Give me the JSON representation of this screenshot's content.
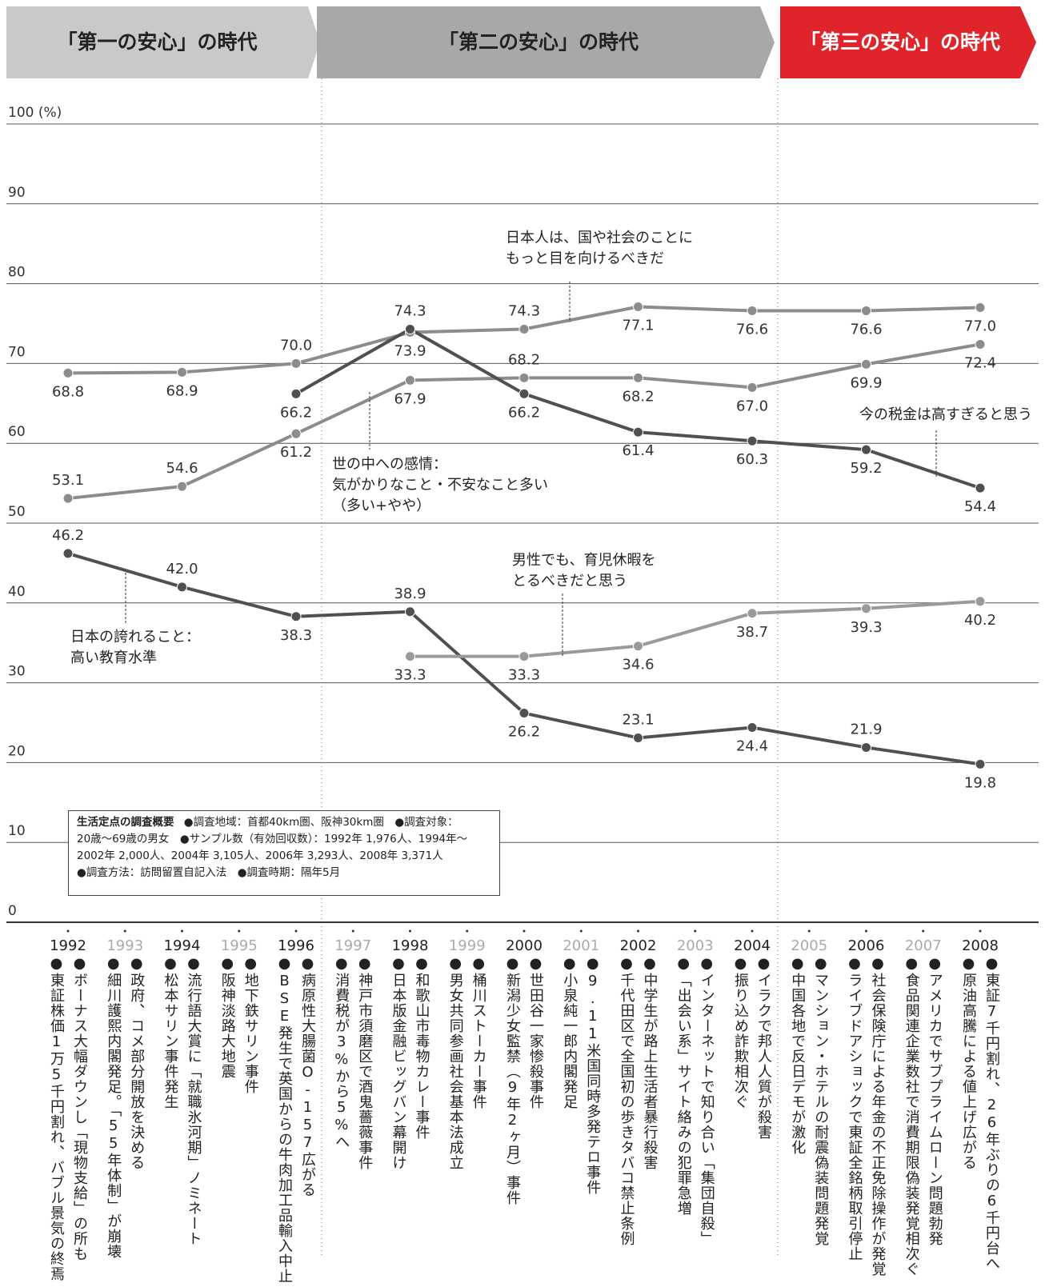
{
  "chart_data": {
    "type": "line",
    "eras": [
      {
        "label": "「第一の安心」の時代",
        "color": "#c9c9c9",
        "text_color": "#222222"
      },
      {
        "label": "「第二の安心」の時代",
        "color": "#a8a8a8",
        "text_color": "#222222"
      },
      {
        "label": "「第三の安心」の時代",
        "color": "#e0242c",
        "text_color": "#ffffff"
      }
    ],
    "x": [
      1992,
      1993,
      1994,
      1995,
      1996,
      1997,
      1998,
      1999,
      2000,
      2001,
      2002,
      2003,
      2004,
      2005,
      2006,
      2007,
      2008
    ],
    "ylim": [
      0,
      100
    ],
    "yticks": [
      0,
      10,
      20,
      30,
      40,
      50,
      60,
      70,
      80,
      90,
      {
        "value": 100,
        "label": "100 (%)"
      }
    ],
    "grid": true,
    "series": [
      {
        "name": "日本人は、国や社会のことに\nもっと目を向けるべきだ",
        "color": "#8c8c8c",
        "values": [
          68.8,
          null,
          68.9,
          null,
          70.0,
          null,
          73.9,
          null,
          74.3,
          null,
          77.1,
          null,
          76.6,
          null,
          76.6,
          null,
          77.0
        ],
        "value_labels": [
          "68.8",
          null,
          "68.9",
          null,
          "70.0",
          null,
          "73.9",
          null,
          "74.3",
          null,
          "77.1",
          null,
          "76.6",
          null,
          "76.6",
          null,
          "77.0"
        ]
      },
      {
        "name": "世の中への感情：\n気がかりなこと・不安なこと多い\n（多い+やや）",
        "color": "#8c8c8c",
        "values": [
          53.1,
          null,
          54.6,
          null,
          61.2,
          null,
          67.9,
          null,
          68.2,
          null,
          68.2,
          null,
          67.0,
          null,
          69.9,
          null,
          72.4
        ],
        "value_labels": [
          "53.1",
          null,
          "54.6",
          null,
          "61.2",
          null,
          "67.9",
          null,
          "68.2",
          null,
          "68.2",
          null,
          "67.0",
          null,
          "69.9",
          null,
          "72.4"
        ]
      },
      {
        "name": "今の税金は高すぎると思う",
        "color": "#505050",
        "values": [
          null,
          null,
          null,
          null,
          66.2,
          null,
          74.3,
          null,
          66.2,
          null,
          61.4,
          null,
          60.3,
          null,
          59.2,
          null,
          54.4
        ],
        "value_labels": [
          null,
          null,
          null,
          null,
          "66.2",
          null,
          "74.3",
          null,
          "66.2",
          null,
          "61.4",
          null,
          "60.3",
          null,
          "59.2",
          null,
          "54.4"
        ]
      },
      {
        "name": "日本の誇れること：\n高い教育水準",
        "color": "#505050",
        "values": [
          46.2,
          null,
          42.0,
          null,
          38.3,
          null,
          38.9,
          null,
          26.2,
          null,
          23.1,
          null,
          24.4,
          null,
          21.9,
          null,
          19.8
        ],
        "value_labels": [
          "46.2",
          null,
          "42.0",
          null,
          "38.3",
          null,
          "38.9",
          null,
          "26.2",
          null,
          "23.1",
          null,
          "24.4",
          null,
          "21.9",
          null,
          "19.8"
        ]
      },
      {
        "name": "男性でも、育児休暇を\nとるべきだと思う",
        "color": "#9a9a9a",
        "values": [
          null,
          null,
          null,
          null,
          null,
          null,
          33.3,
          null,
          33.3,
          null,
          34.6,
          null,
          38.7,
          null,
          39.3,
          null,
          40.2
        ],
        "value_labels": [
          null,
          null,
          null,
          null,
          null,
          null,
          "33.3",
          null,
          "33.3",
          null,
          "34.6",
          null,
          "38.7",
          null,
          "39.3",
          null,
          "40.2"
        ]
      }
    ],
    "survey": {
      "title": "生活定点の調査概要",
      "lines": [
        "●調査地域：首都40km圏、阪神30km圏　●調査対象：",
        "20歳〜69歳の男女　●サンプル数（有効回収数）：1992年 1,976人、1994年〜",
        "2002年 2,000人、2004年 3,105人、2006年 3,293人、2008年 3,371人",
        "●調査方法：訪問留置自記入法　●調査時期：隔年5月"
      ]
    },
    "events": [
      [
        "●東証株価1万5千円割れ、バブル景気の終焉",
        "●ボーナス大幅ダウンし「現物支給」の所も"
      ],
      [
        "●細川護熙内閣発足。「55年体制」が崩壊",
        "●政府、コメ部分開放を決める"
      ],
      [
        "●松本サリン事件発生",
        "●流行語大賞に「就職氷河期」ノミネート"
      ],
      [
        "●阪神淡路大地震",
        "●地下鉄サリン事件"
      ],
      [
        "●BSE発生で英国からの牛肉加工品輸入中止",
        "●病原性大腸菌O-157広がる"
      ],
      [
        "●消費税が3%から5%へ",
        "●神戸市須磨区で酒鬼薔薇事件"
      ],
      [
        "●日本版金融ビッグバン幕開け",
        "●和歌山市毒物カレー事件"
      ],
      [
        "●男女共同参画社会基本法成立",
        "●桶川ストーカー事件"
      ],
      [
        "●新潟少女監禁（9年2ヶ月）事件",
        "●世田谷一家惨殺事件"
      ],
      [
        "●小泉純一郎内閣発足",
        "●9.11米国同時多発テロ事件"
      ],
      [
        "●千代田区で全国初の歩きタバコ禁止条例",
        "●中学生が路上生活者暴行殺害"
      ],
      [
        "●「出会い系」サイト絡みの犯罪急増",
        "●インターネットで知り合い「集団自殺」"
      ],
      [
        "●振り込め詐欺相次ぐ",
        "●イラクで邦人人質が殺害"
      ],
      [
        "●中国各地で反日デモが激化",
        "●マンション・ホテルの耐震偽装問題発覚"
      ],
      [
        "●ライブドアショックで東証全銘柄取引停止",
        "●社会保険庁による年金の不正免除操作が発覚"
      ],
      [
        "●食品関連企業数社で消費期限偽装発覚相次ぐ",
        "●アメリカでサブプライムローン問題勃発"
      ],
      [
        "●原油高騰による値上げ広がる",
        "●東証7千円割れ、26年ぶりの6千円台へ"
      ]
    ]
  }
}
